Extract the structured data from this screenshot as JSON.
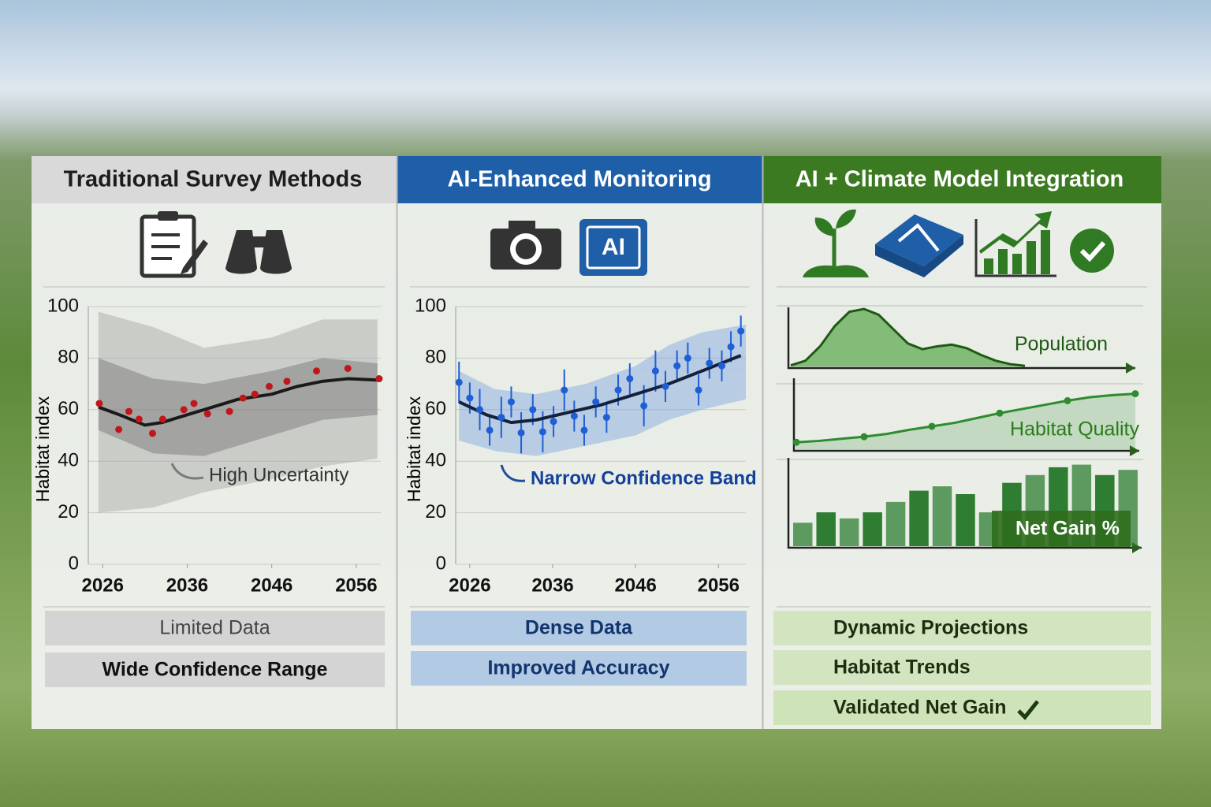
{
  "panels": [
    {
      "title": "Traditional Survey Methods",
      "labels": [
        "Limited Data",
        "Wide Confidence Range"
      ]
    },
    {
      "title": "AI-Enhanced Monitoring",
      "icon_text": "AI",
      "labels": [
        "Dense Data",
        "Improved Accuracy"
      ]
    },
    {
      "title": "AI + Climate Model Integration",
      "labels": [
        "Dynamic Projections",
        "Habitat Trends",
        "Validated Net Gain"
      ]
    }
  ],
  "chart_data": [
    {
      "type": "line",
      "ylabel": "Habitat index",
      "annotation": "High Uncertainty",
      "xlim": [
        2024.3,
        2058.9
      ],
      "ylim": [
        0,
        100
      ],
      "xticks": [
        2026,
        2036,
        2046,
        2056
      ],
      "yticks": [
        0,
        20,
        40,
        60,
        80,
        100
      ],
      "grid": true,
      "line_color": "#1a1a1a",
      "point_color": "#c0161c",
      "trend": {
        "x": [
          2025.5,
          2028,
          2031,
          2033,
          2036,
          2039,
          2042,
          2046,
          2049,
          2052,
          2055,
          2058.5
        ],
        "values": [
          61,
          58,
          54,
          55,
          58,
          61,
          64,
          66,
          69,
          71,
          72,
          71.5
        ]
      },
      "observations": {
        "x": [
          2025.6,
          2027.9,
          2029.1,
          2030.3,
          2031.9,
          2033.1,
          2035.6,
          2036.8,
          2038.4,
          2041,
          2042.6,
          2044,
          2045.7,
          2047.8,
          2051.3,
          2055,
          2058.7
        ],
        "values": [
          62.4,
          52.3,
          59.3,
          56.3,
          50.8,
          56.3,
          60,
          62.4,
          58.4,
          59.3,
          64.5,
          66,
          69,
          71,
          75,
          76,
          72
        ]
      },
      "bands": [
        {
          "color": "#9a9a9a",
          "x": [
            2025.5,
            2032,
            2038,
            2046,
            2052,
            2058.5
          ],
          "upper": [
            98,
            92,
            84,
            88,
            95,
            95
          ],
          "lower": [
            20,
            22,
            28,
            33,
            38,
            41
          ]
        },
        {
          "color": "#6a6a6a",
          "x": [
            2025.5,
            2032,
            2038,
            2046,
            2052,
            2058.5
          ],
          "upper": [
            80,
            72,
            70,
            75,
            80,
            78
          ],
          "lower": [
            52,
            43,
            42,
            50,
            56,
            58
          ]
        }
      ]
    },
    {
      "type": "line",
      "ylabel": "Habitat index",
      "annotation": "Narrow Confidence Band",
      "xlim": [
        2024.3,
        2059.3
      ],
      "ylim": [
        0,
        100
      ],
      "xticks": [
        2026,
        2036,
        2046,
        2056
      ],
      "yticks": [
        0,
        20,
        40,
        60,
        80,
        100
      ],
      "grid": true,
      "line_color": "#14213d",
      "point_color": "#1f5fd6",
      "trend": {
        "x": [
          2024.7,
          2028,
          2031,
          2034,
          2038,
          2042,
          2046,
          2050,
          2054,
          2058.7
        ],
        "values": [
          63,
          58,
          55,
          56,
          59,
          62,
          66,
          70,
          75,
          81
        ]
      },
      "observations": {
        "x": [
          2024.7,
          2026,
          2027.2,
          2028.4,
          2029.8,
          2031,
          2032.2,
          2033.6,
          2034.8,
          2036.1,
          2037.4,
          2038.6,
          2039.8,
          2041.2,
          2042.5,
          2043.9,
          2045.3,
          2047,
          2048.4,
          2049.6,
          2051,
          2052.3,
          2053.6,
          2054.9,
          2056.4,
          2057.5,
          2058.7
        ],
        "values": [
          70.6,
          64.5,
          60,
          52,
          57,
          63,
          51,
          60,
          51.4,
          55.4,
          67.6,
          57.5,
          52,
          63,
          57,
          67.6,
          72,
          61.5,
          75,
          69,
          77,
          80,
          67.6,
          78,
          77,
          84.4,
          90.5
        ],
        "errors": [
          8,
          6,
          8,
          6,
          8,
          6,
          8,
          6,
          8,
          6,
          8,
          6,
          6,
          6,
          6,
          6,
          6,
          8,
          8,
          6,
          6,
          6,
          6,
          6,
          6,
          6,
          6
        ]
      },
      "bands": [
        {
          "color": "#6f9ae0",
          "x": [
            2024.7,
            2029,
            2034,
            2040,
            2046,
            2050,
            2054,
            2059.3
          ],
          "upper": [
            75,
            68,
            66,
            70,
            77,
            85,
            90,
            93
          ],
          "lower": [
            48,
            44,
            42,
            46,
            50,
            56,
            60,
            64
          ]
        }
      ]
    },
    {
      "type": "area",
      "label": "Population",
      "ylim": [
        0,
        100
      ],
      "color": "#3f9a2f",
      "values": [
        2,
        10,
        35,
        70,
        95,
        100,
        90,
        65,
        40,
        30,
        35,
        38,
        32,
        20,
        10,
        4,
        1
      ]
    },
    {
      "type": "line",
      "label": "Habitat Quality",
      "ylim": [
        0,
        100
      ],
      "color": "#2e8b2e",
      "values": [
        10,
        12,
        15,
        18,
        22,
        28,
        33,
        38,
        45,
        52,
        58,
        64,
        70,
        75,
        78,
        80
      ]
    },
    {
      "type": "bar",
      "label": "Net Gain %",
      "ylim": [
        0,
        100
      ],
      "color": "#2e7d32",
      "values": [
        27,
        39,
        32,
        39,
        51,
        64,
        69,
        60,
        39,
        73,
        82,
        91,
        94,
        82,
        88
      ]
    }
  ]
}
